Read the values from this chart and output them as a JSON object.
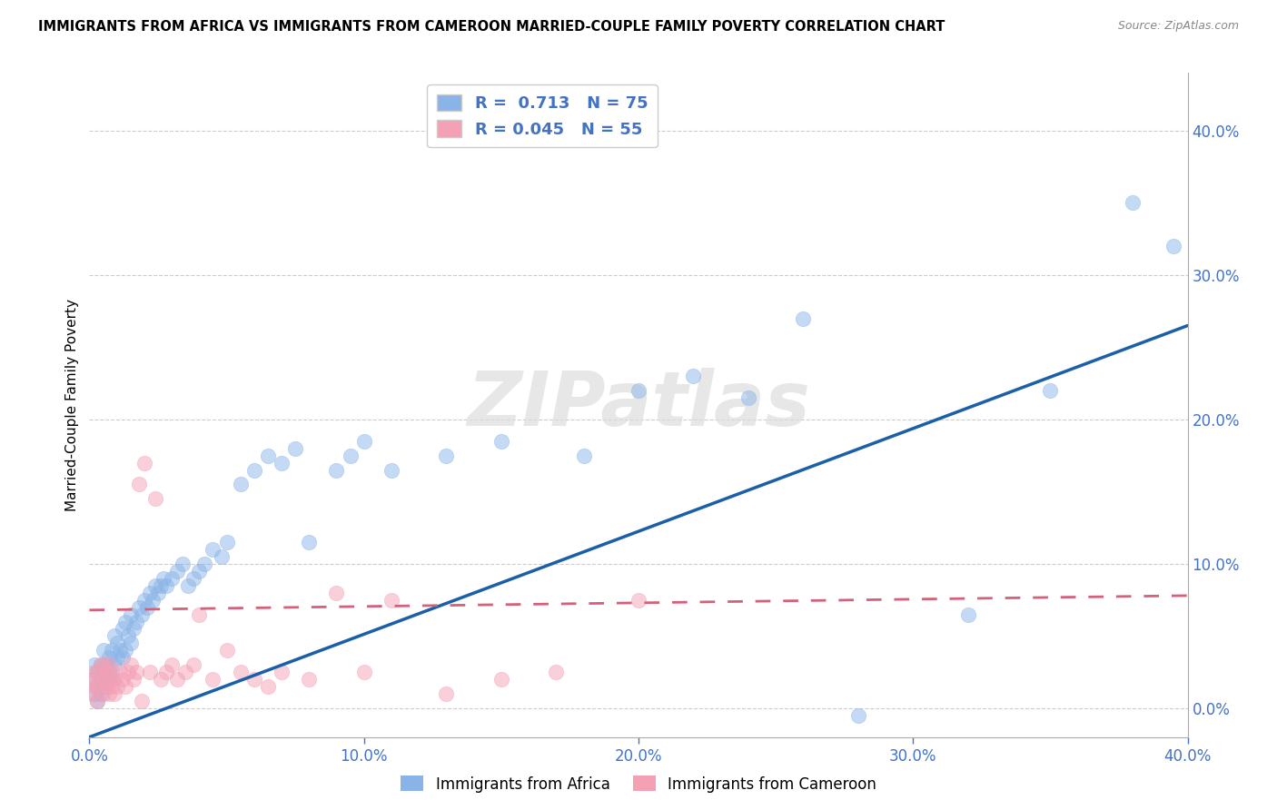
{
  "title": "IMMIGRANTS FROM AFRICA VS IMMIGRANTS FROM CAMEROON MARRIED-COUPLE FAMILY POVERTY CORRELATION CHART",
  "source": "Source: ZipAtlas.com",
  "xlabel_label": "Immigrants from Africa",
  "ylabel_label": "Married-Couple Family Poverty",
  "legend_label1": "Immigrants from Africa",
  "legend_label2": "Immigrants from Cameroon",
  "R1": 0.713,
  "N1": 75,
  "R2": 0.045,
  "N2": 55,
  "xlim": [
    0.0,
    0.4
  ],
  "ylim": [
    -0.02,
    0.44
  ],
  "color_africa": "#8ab4e8",
  "color_cameroon": "#f4a0b5",
  "color_africa_line": "#1a5fa8",
  "color_cameroon_line": "#d4607a",
  "watermark": "ZIPatlas",
  "africa_line_x0": 0.0,
  "africa_line_y0": -0.02,
  "africa_line_x1": 0.4,
  "africa_line_y1": 0.265,
  "cameroon_line_x0": 0.0,
  "cameroon_line_y0": 0.068,
  "cameroon_line_x1": 0.4,
  "cameroon_line_y1": 0.078,
  "africa_x": [
    0.001,
    0.002,
    0.002,
    0.003,
    0.003,
    0.003,
    0.004,
    0.004,
    0.004,
    0.005,
    0.005,
    0.005,
    0.006,
    0.006,
    0.007,
    0.007,
    0.008,
    0.008,
    0.009,
    0.009,
    0.01,
    0.01,
    0.011,
    0.012,
    0.012,
    0.013,
    0.013,
    0.014,
    0.015,
    0.015,
    0.016,
    0.017,
    0.018,
    0.019,
    0.02,
    0.021,
    0.022,
    0.023,
    0.024,
    0.025,
    0.026,
    0.027,
    0.028,
    0.03,
    0.032,
    0.034,
    0.036,
    0.038,
    0.04,
    0.042,
    0.045,
    0.048,
    0.05,
    0.055,
    0.06,
    0.065,
    0.07,
    0.075,
    0.08,
    0.09,
    0.095,
    0.1,
    0.11,
    0.13,
    0.15,
    0.18,
    0.2,
    0.22,
    0.24,
    0.26,
    0.28,
    0.32,
    0.35,
    0.38,
    0.395
  ],
  "africa_y": [
    0.02,
    0.01,
    0.03,
    0.005,
    0.015,
    0.025,
    0.02,
    0.03,
    0.01,
    0.015,
    0.025,
    0.04,
    0.03,
    0.02,
    0.025,
    0.035,
    0.02,
    0.04,
    0.03,
    0.05,
    0.035,
    0.045,
    0.04,
    0.035,
    0.055,
    0.04,
    0.06,
    0.05,
    0.045,
    0.065,
    0.055,
    0.06,
    0.07,
    0.065,
    0.075,
    0.07,
    0.08,
    0.075,
    0.085,
    0.08,
    0.085,
    0.09,
    0.085,
    0.09,
    0.095,
    0.1,
    0.085,
    0.09,
    0.095,
    0.1,
    0.11,
    0.105,
    0.115,
    0.155,
    0.165,
    0.175,
    0.17,
    0.18,
    0.115,
    0.165,
    0.175,
    0.185,
    0.165,
    0.175,
    0.185,
    0.175,
    0.22,
    0.23,
    0.215,
    0.27,
    -0.005,
    0.065,
    0.22,
    0.35,
    0.32
  ],
  "cameroon_x": [
    0.001,
    0.001,
    0.002,
    0.002,
    0.003,
    0.003,
    0.003,
    0.004,
    0.004,
    0.005,
    0.005,
    0.005,
    0.006,
    0.006,
    0.007,
    0.007,
    0.007,
    0.008,
    0.008,
    0.009,
    0.009,
    0.01,
    0.011,
    0.012,
    0.013,
    0.014,
    0.015,
    0.016,
    0.017,
    0.018,
    0.019,
    0.02,
    0.022,
    0.024,
    0.026,
    0.028,
    0.03,
    0.032,
    0.035,
    0.038,
    0.04,
    0.045,
    0.05,
    0.055,
    0.06,
    0.065,
    0.07,
    0.08,
    0.09,
    0.1,
    0.11,
    0.13,
    0.15,
    0.17,
    0.2
  ],
  "cameroon_y": [
    0.02,
    0.01,
    0.015,
    0.025,
    0.005,
    0.015,
    0.025,
    0.02,
    0.03,
    0.01,
    0.02,
    0.03,
    0.015,
    0.025,
    0.02,
    0.01,
    0.03,
    0.015,
    0.025,
    0.02,
    0.01,
    0.015,
    0.025,
    0.02,
    0.015,
    0.025,
    0.03,
    0.02,
    0.025,
    0.155,
    0.005,
    0.17,
    0.025,
    0.145,
    0.02,
    0.025,
    0.03,
    0.02,
    0.025,
    0.03,
    0.065,
    0.02,
    0.04,
    0.025,
    0.02,
    0.015,
    0.025,
    0.02,
    0.08,
    0.025,
    0.075,
    0.01,
    0.02,
    0.025,
    0.075
  ]
}
